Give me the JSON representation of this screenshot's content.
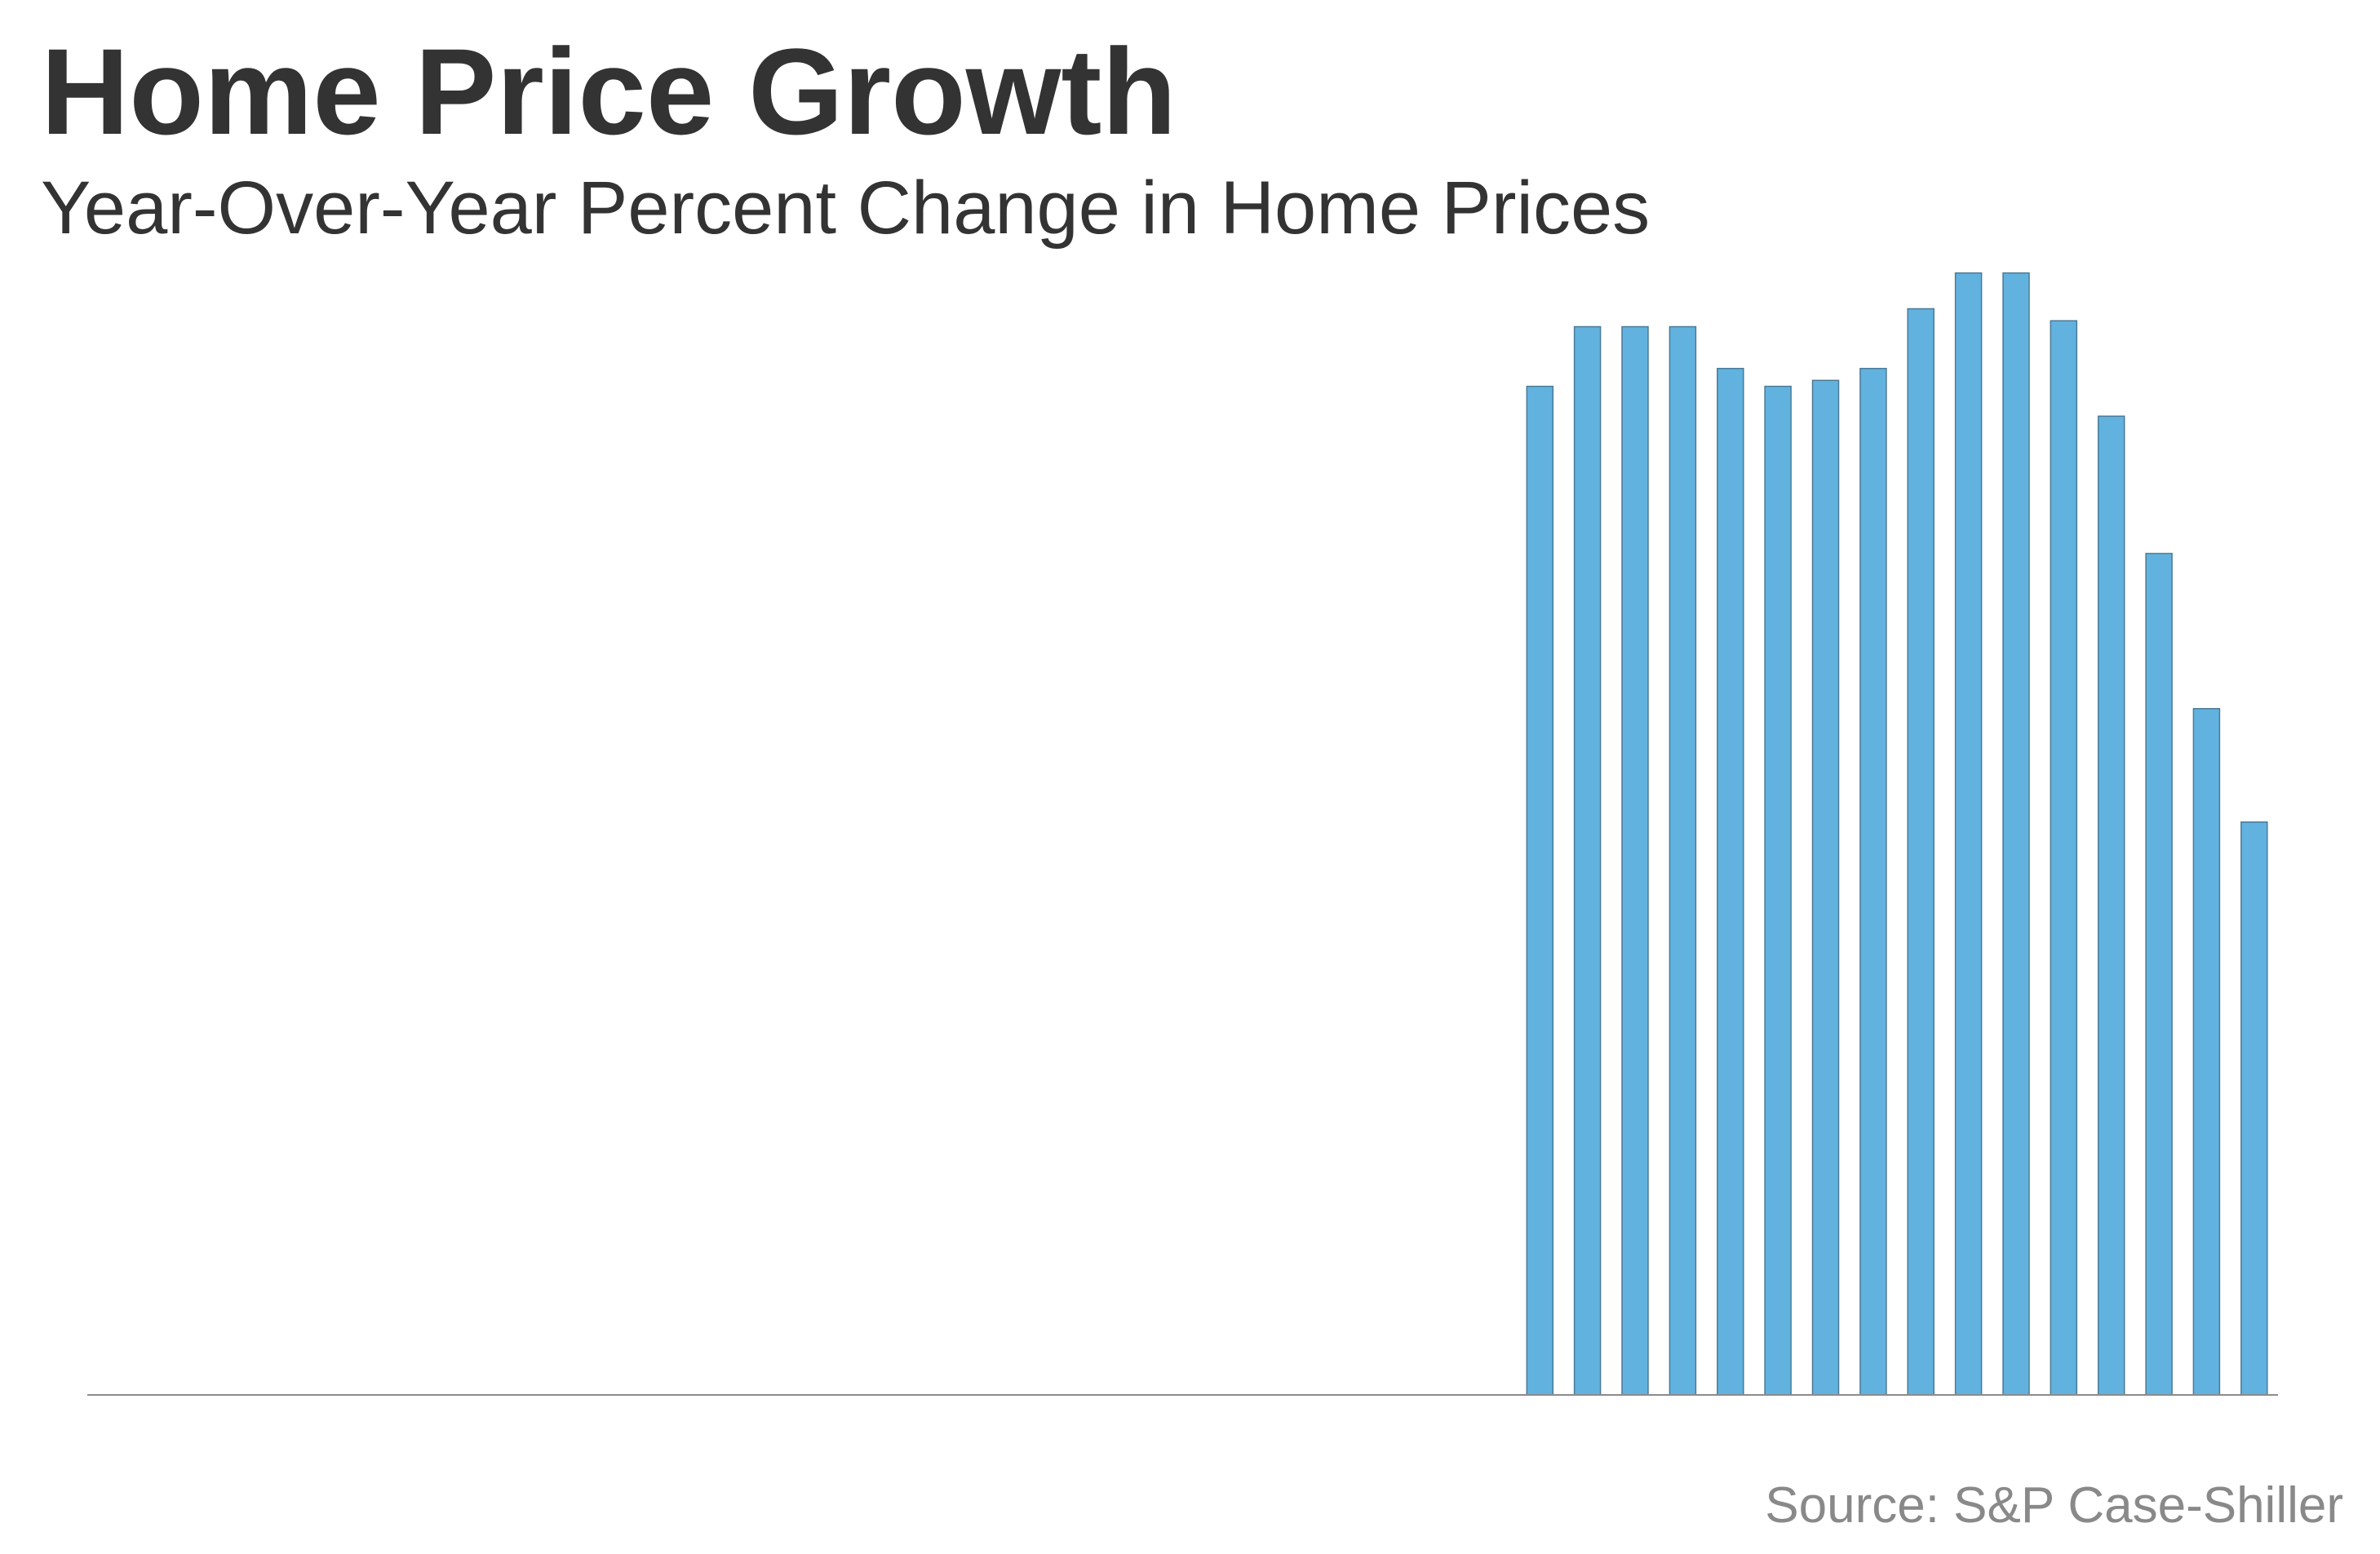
{
  "header": {
    "title": "Home Price Growth",
    "subtitle": "Year-Over-Year Percent Change in Home Prices"
  },
  "footer": {
    "source": "Source: S&P Case-Shiller"
  },
  "colors": {
    "bar_fill": "#62b2df",
    "bar_stroke": "#4a7a96",
    "baseline": "#8c8c8c",
    "title_text": "#333333",
    "source_text": "#898989"
  },
  "chart_data": {
    "type": "bar",
    "title": "Home Price Growth",
    "subtitle": "Year-Over-Year Percent Change in Home Prices",
    "xlabel": "",
    "ylabel": "",
    "grid": false,
    "legend": "none",
    "slots": 46,
    "values": [
      16.9,
      17.9,
      17.9,
      17.9,
      17.2,
      16.9,
      17.0,
      17.2,
      18.2,
      18.8,
      18.8,
      18.0,
      16.4,
      14.1,
      11.5,
      9.6
    ],
    "ylim": [
      0,
      19
    ]
  }
}
